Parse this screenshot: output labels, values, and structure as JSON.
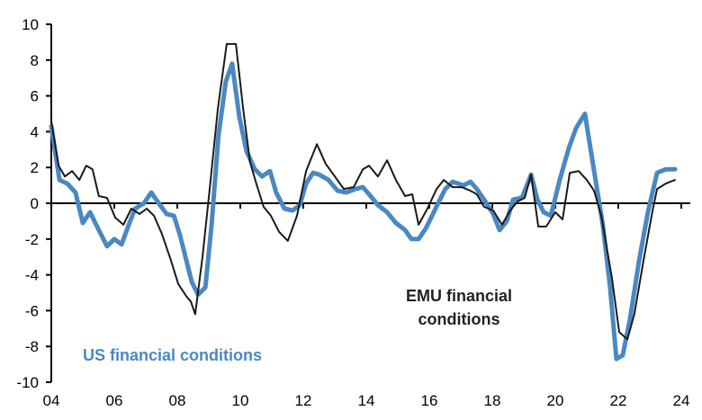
{
  "chart_data": {
    "type": "line",
    "title": "",
    "xlabel": "",
    "ylabel": "",
    "xlim": [
      2004,
      2024.4
    ],
    "ylim": [
      -10,
      10
    ],
    "grid": false,
    "y_ticks": [
      10,
      8,
      6,
      4,
      2,
      0,
      -2,
      -4,
      -6,
      -8,
      -10
    ],
    "x_ticks": [
      {
        "year": 2004,
        "label": "04"
      },
      {
        "year": 2006,
        "label": "06"
      },
      {
        "year": 2008,
        "label": "08"
      },
      {
        "year": 2010,
        "label": "10"
      },
      {
        "year": 2012,
        "label": "12"
      },
      {
        "year": 2014,
        "label": "14"
      },
      {
        "year": 2016,
        "label": "16"
      },
      {
        "year": 2018,
        "label": "18"
      },
      {
        "year": 2020,
        "label": "20"
      },
      {
        "year": 2022,
        "label": "22"
      },
      {
        "year": 2024,
        "label": "24"
      }
    ],
    "series": [
      {
        "name": "US financial conditions",
        "color": "#4a88c2",
        "points": [
          [
            2004.0,
            4.3
          ],
          [
            2004.26,
            1.3
          ],
          [
            2004.51,
            1.1
          ],
          [
            2004.77,
            0.6
          ],
          [
            2005.0,
            -1.1
          ],
          [
            2005.23,
            -0.5
          ],
          [
            2005.51,
            -1.5
          ],
          [
            2005.77,
            -2.4
          ],
          [
            2006.0,
            -2.0
          ],
          [
            2006.23,
            -2.3
          ],
          [
            2006.46,
            -1.2
          ],
          [
            2006.66,
            -0.3
          ],
          [
            2006.94,
            0.0
          ],
          [
            2007.17,
            0.6
          ],
          [
            2007.37,
            0.1
          ],
          [
            2007.66,
            -0.6
          ],
          [
            2007.89,
            -0.7
          ],
          [
            2008.09,
            -1.8
          ],
          [
            2008.29,
            -3.2
          ],
          [
            2008.46,
            -4.4
          ],
          [
            2008.66,
            -5.1
          ],
          [
            2008.89,
            -4.7
          ],
          [
            2009.09,
            -1.2
          ],
          [
            2009.31,
            3.8
          ],
          [
            2009.54,
            6.8
          ],
          [
            2009.74,
            7.8
          ],
          [
            2009.97,
            4.8
          ],
          [
            2010.2,
            2.9
          ],
          [
            2010.46,
            1.9
          ],
          [
            2010.69,
            1.5
          ],
          [
            2010.94,
            1.8
          ],
          [
            2011.14,
            0.6
          ],
          [
            2011.4,
            -0.3
          ],
          [
            2011.66,
            -0.4
          ],
          [
            2011.89,
            -0.1
          ],
          [
            2012.09,
            1.1
          ],
          [
            2012.31,
            1.7
          ],
          [
            2012.51,
            1.6
          ],
          [
            2012.8,
            1.3
          ],
          [
            2013.09,
            0.7
          ],
          [
            2013.37,
            0.6
          ],
          [
            2013.66,
            0.8
          ],
          [
            2013.89,
            0.9
          ],
          [
            2014.09,
            0.5
          ],
          [
            2014.37,
            -0.1
          ],
          [
            2014.66,
            -0.5
          ],
          [
            2014.94,
            -1.1
          ],
          [
            2015.23,
            -1.5
          ],
          [
            2015.43,
            -2.0
          ],
          [
            2015.66,
            -2.0
          ],
          [
            2015.89,
            -1.4
          ],
          [
            2016.09,
            -0.7
          ],
          [
            2016.31,
            0.1
          ],
          [
            2016.51,
            0.8
          ],
          [
            2016.74,
            1.2
          ],
          [
            2017.09,
            1.0
          ],
          [
            2017.31,
            1.2
          ],
          [
            2017.51,
            0.8
          ],
          [
            2017.74,
            0.2
          ],
          [
            2018.03,
            -0.6
          ],
          [
            2018.23,
            -1.5
          ],
          [
            2018.46,
            -1.0
          ],
          [
            2018.66,
            0.2
          ],
          [
            2018.94,
            0.3
          ],
          [
            2019.23,
            1.6
          ],
          [
            2019.43,
            0.2
          ],
          [
            2019.63,
            -0.5
          ],
          [
            2019.86,
            -0.7
          ],
          [
            2020.14,
            1.3
          ],
          [
            2020.43,
            3.1
          ],
          [
            2020.66,
            4.2
          ],
          [
            2020.94,
            5.0
          ],
          [
            2021.23,
            1.8
          ],
          [
            2021.51,
            -1.2
          ],
          [
            2021.74,
            -4.7
          ],
          [
            2021.94,
            -8.7
          ],
          [
            2022.14,
            -8.5
          ],
          [
            2022.37,
            -6.5
          ],
          [
            2022.66,
            -3.2
          ],
          [
            2022.94,
            -0.5
          ],
          [
            2023.23,
            1.7
          ],
          [
            2023.51,
            1.9
          ],
          [
            2023.8,
            1.9
          ]
        ]
      },
      {
        "name": "EMU financial conditions",
        "color": "#1a1a1a",
        "points": [
          [
            2004.0,
            4.6
          ],
          [
            2004.23,
            2.1
          ],
          [
            2004.43,
            1.5
          ],
          [
            2004.66,
            1.8
          ],
          [
            2004.89,
            1.3
          ],
          [
            2005.11,
            2.1
          ],
          [
            2005.31,
            1.9
          ],
          [
            2005.51,
            0.4
          ],
          [
            2005.77,
            0.3
          ],
          [
            2006.03,
            -0.8
          ],
          [
            2006.29,
            -1.2
          ],
          [
            2006.54,
            -0.3
          ],
          [
            2006.8,
            -0.6
          ],
          [
            2007.03,
            -0.3
          ],
          [
            2007.26,
            -0.7
          ],
          [
            2007.51,
            -1.7
          ],
          [
            2007.8,
            -3.2
          ],
          [
            2008.03,
            -4.5
          ],
          [
            2008.29,
            -5.2
          ],
          [
            2008.43,
            -5.5
          ],
          [
            2008.57,
            -6.2
          ],
          [
            2008.8,
            -3.0
          ],
          [
            2009.03,
            0.8
          ],
          [
            2009.29,
            5.3
          ],
          [
            2009.57,
            8.9
          ],
          [
            2009.86,
            8.9
          ],
          [
            2010.09,
            5.3
          ],
          [
            2010.31,
            2.3
          ],
          [
            2010.51,
            1.1
          ],
          [
            2010.74,
            -0.2
          ],
          [
            2010.97,
            -0.7
          ],
          [
            2011.23,
            -1.6
          ],
          [
            2011.51,
            -2.1
          ],
          [
            2011.8,
            -0.7
          ],
          [
            2012.09,
            1.8
          ],
          [
            2012.43,
            3.3
          ],
          [
            2012.71,
            2.2
          ],
          [
            2013.0,
            1.5
          ],
          [
            2013.29,
            0.8
          ],
          [
            2013.6,
            0.9
          ],
          [
            2013.89,
            1.9
          ],
          [
            2014.09,
            2.1
          ],
          [
            2014.37,
            1.5
          ],
          [
            2014.66,
            2.4
          ],
          [
            2014.94,
            1.3
          ],
          [
            2015.23,
            0.4
          ],
          [
            2015.46,
            0.5
          ],
          [
            2015.66,
            -1.2
          ],
          [
            2015.94,
            -0.3
          ],
          [
            2016.23,
            0.8
          ],
          [
            2016.46,
            1.3
          ],
          [
            2016.74,
            0.9
          ],
          [
            2017.03,
            0.9
          ],
          [
            2017.31,
            0.7
          ],
          [
            2017.51,
            0.5
          ],
          [
            2017.74,
            -0.2
          ],
          [
            2018.03,
            -0.4
          ],
          [
            2018.31,
            -1.2
          ],
          [
            2018.57,
            -0.4
          ],
          [
            2018.8,
            0.1
          ],
          [
            2019.03,
            0.3
          ],
          [
            2019.23,
            1.6
          ],
          [
            2019.46,
            -1.3
          ],
          [
            2019.71,
            -1.3
          ],
          [
            2020.0,
            -0.5
          ],
          [
            2020.23,
            -0.9
          ],
          [
            2020.46,
            1.7
          ],
          [
            2020.74,
            1.8
          ],
          [
            2021.0,
            1.3
          ],
          [
            2021.23,
            0.7
          ],
          [
            2021.46,
            -0.7
          ],
          [
            2021.8,
            -4.2
          ],
          [
            2022.03,
            -7.2
          ],
          [
            2022.29,
            -7.6
          ],
          [
            2022.51,
            -6.2
          ],
          [
            2022.8,
            -3.2
          ],
          [
            2023.09,
            -0.4
          ],
          [
            2023.23,
            0.8
          ],
          [
            2023.51,
            1.1
          ],
          [
            2023.8,
            1.3
          ]
        ]
      }
    ],
    "annotations": {
      "us_label": "US financial conditions",
      "emu_label_line1": "EMU financial",
      "emu_label_line2": "conditions"
    }
  }
}
